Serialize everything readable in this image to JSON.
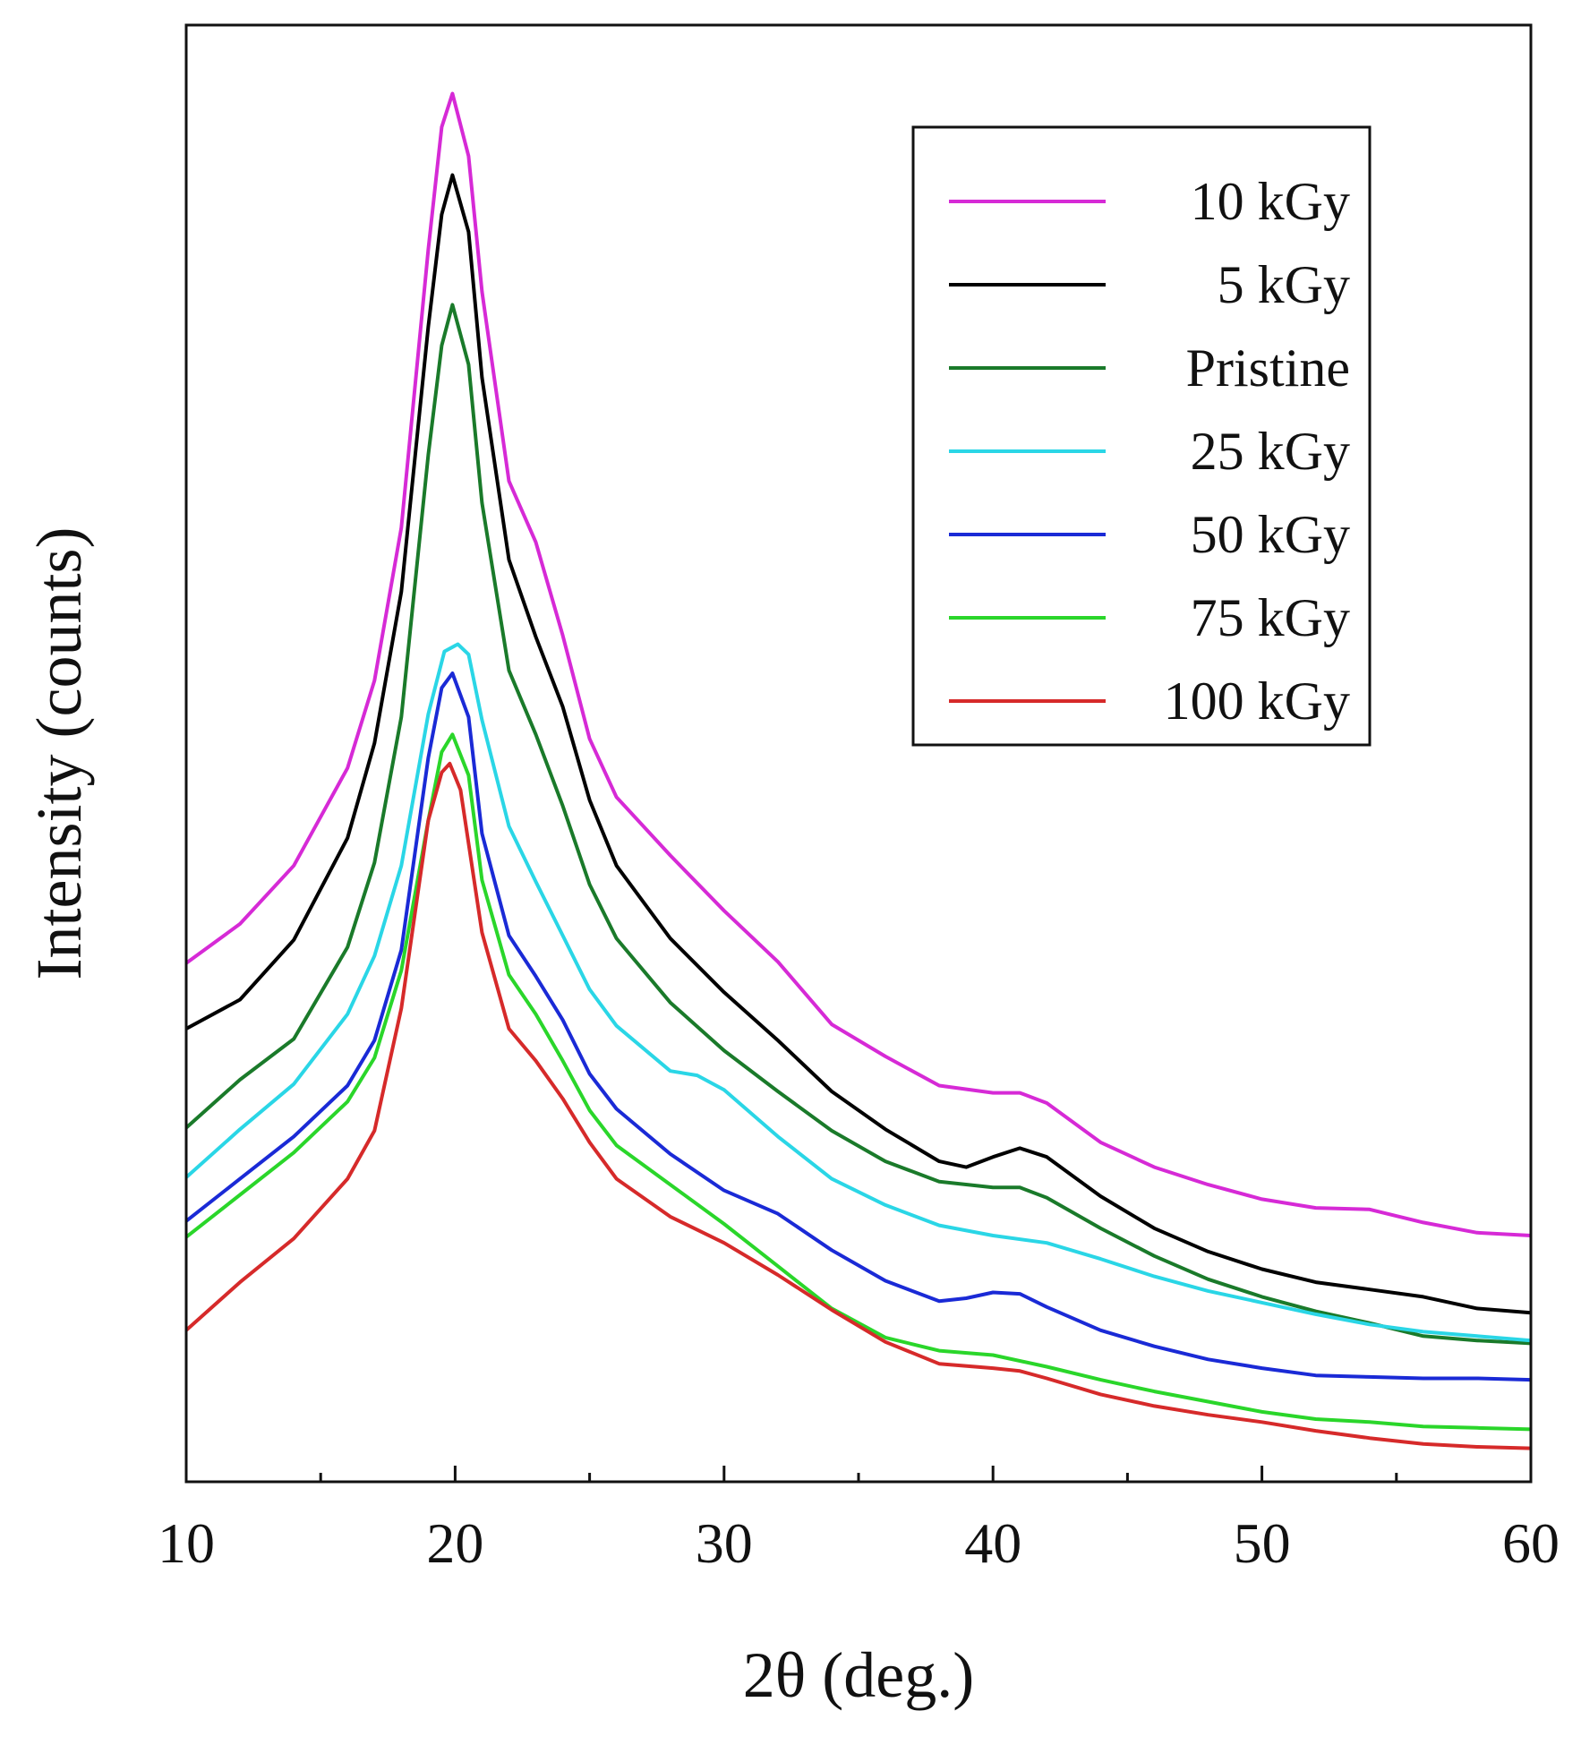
{
  "chart_data": {
    "type": "line",
    "title": "",
    "xlabel": "2θ (deg.)",
    "ylabel": "Intensity (counts)",
    "xlim": [
      10,
      60
    ],
    "ylim": [
      0,
      100
    ],
    "x_ticks": [
      10,
      20,
      30,
      40,
      50,
      60
    ],
    "x_tick_labels": [
      "10",
      "20",
      "30",
      "40",
      "50",
      "60"
    ],
    "y_tick_labels_shown": false,
    "grid": false,
    "legend_position": "top-right",
    "series": [
      {
        "name": "10 kGy",
        "color": "#d62ad6",
        "points": [
          [
            10,
            35.6
          ],
          [
            12,
            38.3
          ],
          [
            14,
            42.3
          ],
          [
            16,
            49.0
          ],
          [
            17,
            55.0
          ],
          [
            18,
            65.5
          ],
          [
            19,
            84.6
          ],
          [
            19.5,
            93.0
          ],
          [
            19.9,
            95.3
          ],
          [
            20.5,
            91.0
          ],
          [
            21,
            81.7
          ],
          [
            22,
            68.7
          ],
          [
            23,
            64.5
          ],
          [
            24,
            58.1
          ],
          [
            25,
            51.0
          ],
          [
            26,
            47.0
          ],
          [
            28,
            43.0
          ],
          [
            30,
            39.2
          ],
          [
            32,
            35.7
          ],
          [
            34,
            31.4
          ],
          [
            36,
            29.2
          ],
          [
            38,
            27.2
          ],
          [
            40,
            26.7
          ],
          [
            41,
            26.7
          ],
          [
            42,
            26.0
          ],
          [
            44,
            23.3
          ],
          [
            46,
            21.6
          ],
          [
            48,
            20.4
          ],
          [
            50,
            19.4
          ],
          [
            52,
            18.8
          ],
          [
            54,
            18.7
          ],
          [
            56,
            17.8
          ],
          [
            58,
            17.1
          ],
          [
            60,
            16.9
          ]
        ]
      },
      {
        "name": "5 kGy",
        "color": "#000000",
        "points": [
          [
            10,
            31.1
          ],
          [
            12,
            33.1
          ],
          [
            14,
            37.2
          ],
          [
            16,
            44.2
          ],
          [
            17,
            50.7
          ],
          [
            18,
            61.1
          ],
          [
            19,
            79.3
          ],
          [
            19.5,
            87.0
          ],
          [
            19.9,
            89.7
          ],
          [
            20.5,
            85.8
          ],
          [
            21,
            75.8
          ],
          [
            22,
            63.3
          ],
          [
            23,
            58.0
          ],
          [
            24,
            53.2
          ],
          [
            25,
            46.8
          ],
          [
            26,
            42.3
          ],
          [
            28,
            37.3
          ],
          [
            30,
            33.6
          ],
          [
            32,
            30.3
          ],
          [
            34,
            26.8
          ],
          [
            36,
            24.2
          ],
          [
            38,
            22.0
          ],
          [
            39,
            21.6
          ],
          [
            40,
            22.3
          ],
          [
            41,
            22.9
          ],
          [
            42,
            22.3
          ],
          [
            44,
            19.6
          ],
          [
            46,
            17.4
          ],
          [
            48,
            15.8
          ],
          [
            50,
            14.6
          ],
          [
            52,
            13.7
          ],
          [
            54,
            13.2
          ],
          [
            56,
            12.7
          ],
          [
            58,
            11.9
          ],
          [
            60,
            11.6
          ]
        ]
      },
      {
        "name": "Pristine",
        "color": "#1a7a2a",
        "points": [
          [
            10,
            24.3
          ],
          [
            12,
            27.6
          ],
          [
            14,
            30.4
          ],
          [
            16,
            36.7
          ],
          [
            17,
            42.5
          ],
          [
            18,
            52.5
          ],
          [
            19,
            70.5
          ],
          [
            19.5,
            78.0
          ],
          [
            19.9,
            80.8
          ],
          [
            20.5,
            76.7
          ],
          [
            21,
            67.2
          ],
          [
            22,
            55.7
          ],
          [
            23,
            51.3
          ],
          [
            24,
            46.4
          ],
          [
            25,
            41.0
          ],
          [
            26,
            37.3
          ],
          [
            28,
            32.9
          ],
          [
            30,
            29.6
          ],
          [
            32,
            26.8
          ],
          [
            34,
            24.1
          ],
          [
            36,
            22.0
          ],
          [
            38,
            20.6
          ],
          [
            40,
            20.2
          ],
          [
            41,
            20.2
          ],
          [
            42,
            19.5
          ],
          [
            44,
            17.4
          ],
          [
            46,
            15.5
          ],
          [
            48,
            13.9
          ],
          [
            50,
            12.7
          ],
          [
            52,
            11.7
          ],
          [
            54,
            10.9
          ],
          [
            56,
            10.0
          ],
          [
            58,
            9.7
          ],
          [
            60,
            9.5
          ]
        ]
      },
      {
        "name": "25 kGy",
        "color": "#2ad6e6",
        "points": [
          [
            10,
            20.9
          ],
          [
            12,
            24.2
          ],
          [
            14,
            27.3
          ],
          [
            16,
            32.1
          ],
          [
            17,
            36.1
          ],
          [
            18,
            42.3
          ],
          [
            19,
            52.7
          ],
          [
            19.6,
            57.0
          ],
          [
            20.1,
            57.5
          ],
          [
            20.5,
            56.8
          ],
          [
            21,
            52.3
          ],
          [
            22,
            45.0
          ],
          [
            23,
            41.2
          ],
          [
            24,
            37.5
          ],
          [
            25,
            33.8
          ],
          [
            26,
            31.3
          ],
          [
            28,
            28.2
          ],
          [
            29,
            27.9
          ],
          [
            30,
            26.9
          ],
          [
            32,
            23.7
          ],
          [
            34,
            20.8
          ],
          [
            36,
            19.0
          ],
          [
            38,
            17.6
          ],
          [
            40,
            16.9
          ],
          [
            42,
            16.4
          ],
          [
            44,
            15.3
          ],
          [
            46,
            14.1
          ],
          [
            48,
            13.1
          ],
          [
            50,
            12.3
          ],
          [
            52,
            11.5
          ],
          [
            54,
            10.8
          ],
          [
            56,
            10.3
          ],
          [
            58,
            10.0
          ],
          [
            60,
            9.7
          ]
        ]
      },
      {
        "name": "50 kGy",
        "color": "#1a2ad6",
        "points": [
          [
            10,
            17.9
          ],
          [
            12,
            20.8
          ],
          [
            14,
            23.7
          ],
          [
            16,
            27.2
          ],
          [
            17,
            30.3
          ],
          [
            18,
            36.5
          ],
          [
            19,
            49.7
          ],
          [
            19.5,
            54.5
          ],
          [
            19.9,
            55.5
          ],
          [
            20.5,
            52.5
          ],
          [
            21,
            44.5
          ],
          [
            22,
            37.5
          ],
          [
            23,
            34.7
          ],
          [
            24,
            31.7
          ],
          [
            25,
            28.0
          ],
          [
            26,
            25.6
          ],
          [
            28,
            22.5
          ],
          [
            30,
            20.0
          ],
          [
            32,
            18.4
          ],
          [
            34,
            15.9
          ],
          [
            36,
            13.8
          ],
          [
            38,
            12.4
          ],
          [
            39,
            12.6
          ],
          [
            40,
            13.0
          ],
          [
            41,
            12.9
          ],
          [
            42,
            12.0
          ],
          [
            44,
            10.4
          ],
          [
            46,
            9.3
          ],
          [
            48,
            8.4
          ],
          [
            50,
            7.8
          ],
          [
            52,
            7.3
          ],
          [
            54,
            7.2
          ],
          [
            56,
            7.1
          ],
          [
            58,
            7.1
          ],
          [
            60,
            7.0
          ]
        ]
      },
      {
        "name": "75 kGy",
        "color": "#2ad62a",
        "points": [
          [
            10,
            16.8
          ],
          [
            12,
            19.7
          ],
          [
            14,
            22.6
          ],
          [
            16,
            26.1
          ],
          [
            17,
            29.1
          ],
          [
            18,
            35.1
          ],
          [
            19,
            45.4
          ],
          [
            19.5,
            50.1
          ],
          [
            19.9,
            51.3
          ],
          [
            20.5,
            48.5
          ],
          [
            21,
            41.3
          ],
          [
            22,
            34.8
          ],
          [
            23,
            32.1
          ],
          [
            24,
            28.9
          ],
          [
            25,
            25.5
          ],
          [
            26,
            23.1
          ],
          [
            28,
            20.4
          ],
          [
            30,
            17.7
          ],
          [
            32,
            14.8
          ],
          [
            34,
            11.9
          ],
          [
            36,
            9.9
          ],
          [
            38,
            9.0
          ],
          [
            40,
            8.7
          ],
          [
            42,
            7.9
          ],
          [
            44,
            7.0
          ],
          [
            46,
            6.2
          ],
          [
            48,
            5.5
          ],
          [
            50,
            4.8
          ],
          [
            52,
            4.3
          ],
          [
            54,
            4.1
          ],
          [
            56,
            3.8
          ],
          [
            58,
            3.7
          ],
          [
            60,
            3.6
          ]
        ]
      },
      {
        "name": "100 kGy",
        "color": "#d62a2a",
        "points": [
          [
            10,
            10.4
          ],
          [
            12,
            13.7
          ],
          [
            14,
            16.7
          ],
          [
            16,
            20.8
          ],
          [
            17,
            24.1
          ],
          [
            18,
            32.5
          ],
          [
            19,
            45.4
          ],
          [
            19.5,
            48.7
          ],
          [
            19.8,
            49.3
          ],
          [
            20.2,
            47.5
          ],
          [
            21,
            37.7
          ],
          [
            22,
            31.1
          ],
          [
            23,
            28.9
          ],
          [
            24,
            26.3
          ],
          [
            25,
            23.3
          ],
          [
            26,
            20.8
          ],
          [
            28,
            18.2
          ],
          [
            30,
            16.4
          ],
          [
            32,
            14.2
          ],
          [
            34,
            11.8
          ],
          [
            36,
            9.6
          ],
          [
            38,
            8.1
          ],
          [
            40,
            7.8
          ],
          [
            41,
            7.6
          ],
          [
            42,
            7.1
          ],
          [
            44,
            6.0
          ],
          [
            46,
            5.2
          ],
          [
            48,
            4.6
          ],
          [
            50,
            4.1
          ],
          [
            52,
            3.5
          ],
          [
            54,
            3.0
          ],
          [
            56,
            2.6
          ],
          [
            58,
            2.4
          ],
          [
            60,
            2.3
          ]
        ]
      }
    ]
  }
}
